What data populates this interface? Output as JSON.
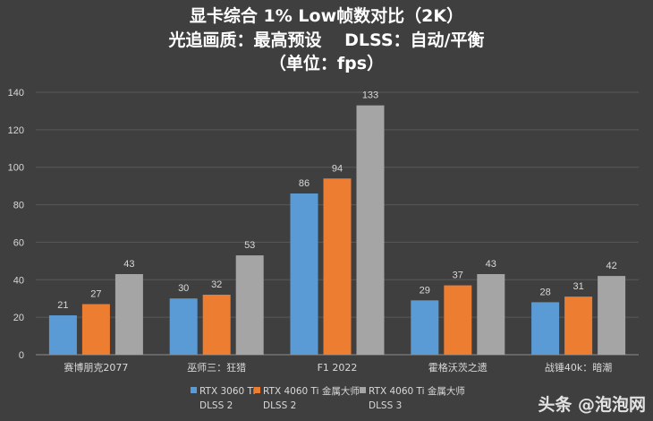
{
  "chart_data": {
    "type": "bar",
    "title_lines": [
      "显卡综合 1% Low帧数对比（2K）",
      "光追画质：最高预设　 DLSS：自动/平衡",
      "（单位：fps）"
    ],
    "categories": [
      "赛博朋克2077",
      "巫师三：狂猎",
      "F1 2022",
      "霍格沃茨之遗",
      "战锤40k：暗潮"
    ],
    "series": [
      {
        "name": "RTX 3060 Ti DLSS 2",
        "legend_line1": "RTX 3060 Ti",
        "legend_line2": "DLSS 2",
        "color": "#5b9bd5",
        "values": [
          21,
          30,
          86,
          29,
          28
        ]
      },
      {
        "name": "RTX 4060 Ti 金属大师 DLSS 2",
        "legend_line1": "RTX 4060 Ti 金属大师",
        "legend_line2": "DLSS 2",
        "color": "#ed7d31",
        "values": [
          27,
          32,
          94,
          37,
          31
        ]
      },
      {
        "name": "RTX 4060 Ti 金属大师 DLSS 3",
        "legend_line1": "RTX 4060 Ti 金属大师",
        "legend_line2": "DLSS 3",
        "color": "#a5a5a5",
        "values": [
          43,
          53,
          133,
          43,
          42
        ]
      }
    ],
    "ylim": [
      0,
      140
    ],
    "yticks": [
      0,
      20,
      40,
      60,
      80,
      100,
      120,
      140
    ],
    "grid": true,
    "legend_position": "bottom",
    "data_labels": true
  },
  "watermark": "头条 @泡泡网"
}
